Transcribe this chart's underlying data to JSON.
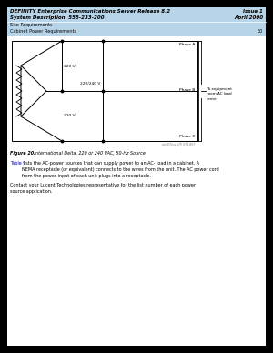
{
  "page_bg": "#000000",
  "content_bg": "#ffffff",
  "header_bg": "#b8d4e8",
  "header_line1": "DEFINITY Enterprise Communications Server Release 8.2",
  "header_line1_right": "Issue 1",
  "header_line2": "System Description  555-233-200",
  "header_line2_right": "April 2000",
  "header_line3": "Site Requirements",
  "header_line4": "Cabinet Power Requirements",
  "header_line4_right": "50",
  "phase_a_label": "Phase A",
  "phase_b_label": "Phase B",
  "phase_c_label": "Phase C",
  "voltage_220_1": "220 V",
  "voltage_220_2": "220 V",
  "voltage_220_240": "220/240 V",
  "to_equipment_1": "To equipment",
  "to_equipment_2": "room AC load",
  "to_equipment_3": "center",
  "figure_caption_bold": "Figure 20.",
  "figure_caption_rest": "   International Delta, 220 or 240 VAC, 50-Hz Source",
  "table9_color": "#0000cc",
  "para1_blue": "Table 9",
  "para1_rest": " lists the AC-power sources that can supply power to an AC- load in a cabinet. A\nNEMA receptacle (or equivalent) connects to the wires from the unit. The AC power cord\nfrom the power input of each unit plugs into a receptacle.",
  "para2": "Contact your Lucent Technologies representative for the list number of each power\nsource application.",
  "watermark": "ant07bw LJR 071497"
}
